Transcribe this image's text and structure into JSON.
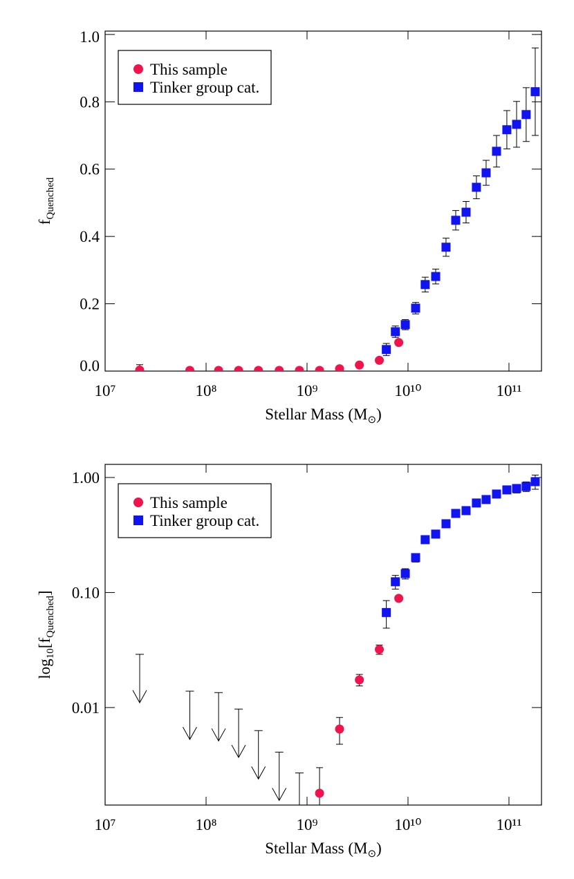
{
  "chart_data": [
    {
      "type": "scatter",
      "xlabel": [
        {
          "text": "Stellar Mass (M"
        },
        {
          "text": "⊙",
          "sub": true
        },
        {
          "text": ")"
        }
      ],
      "ylabel": [
        {
          "text": "f"
        },
        {
          "text": "Quenched",
          "sub": true
        }
      ],
      "xscale": "log",
      "yscale": "linear",
      "xlim": [
        10000000,
        210000000000
      ],
      "ylim": [
        0,
        1.01
      ],
      "xticks": [
        {
          "value": 10000000,
          "label": "10⁷"
        },
        {
          "value": 100000000,
          "label": "10⁸"
        },
        {
          "value": 1000000000,
          "label": "10⁹"
        },
        {
          "value": 10000000000,
          "label": "10¹⁰"
        },
        {
          "value": 100000000000,
          "label": "10¹¹"
        }
      ],
      "yticks": [
        {
          "value": 0,
          "label": "0.0"
        },
        0.2,
        0.4,
        0.6,
        0.8,
        {
          "value": 1,
          "label": "1.0"
        }
      ],
      "legend": "upper left",
      "series": [
        {
          "name": "This sample",
          "color": "#f0134c",
          "marker": "circle",
          "x": [
            22000000,
            69000000,
            133000000,
            210000000,
            330000000,
            530000000,
            840000000,
            1330000000,
            2100000000,
            3300000000,
            5200000000,
            8100000000
          ],
          "values": [
            0.003,
            0.002,
            0.002,
            0.002,
            0.002,
            0.002,
            0.002,
            0.002,
            0.007,
            0.018,
            0.032,
            0.085
          ],
          "errors": [
            0.016,
            null,
            null,
            null,
            null,
            null,
            null,
            null,
            null,
            null,
            null,
            null
          ]
        },
        {
          "name": "Tinker group cat.",
          "color": "#0f14f0",
          "marker": "square",
          "x": [
            6100000000,
            7500000000,
            9400000000,
            11900000000,
            14800000000,
            18800000000,
            23800000000,
            29700000000,
            37600000000,
            47600000000,
            59400000000,
            75300000000,
            95300000000,
            119000000000,
            148000000000,
            182000000000
          ],
          "values": [
            0.064,
            0.117,
            0.138,
            0.187,
            0.257,
            0.281,
            0.368,
            0.448,
            0.472,
            0.546,
            0.589,
            0.653,
            0.717,
            0.733,
            0.762,
            0.83
          ],
          "errors": [
            0.018,
            0.017,
            0.015,
            0.017,
            0.022,
            0.022,
            0.027,
            0.029,
            0.032,
            0.034,
            0.037,
            0.047,
            0.057,
            0.068,
            0.08,
            0.13
          ]
        }
      ]
    },
    {
      "type": "scatter",
      "xlabel": [
        {
          "text": "Stellar Mass (M"
        },
        {
          "text": "⊙",
          "sub": true
        },
        {
          "text": ")"
        }
      ],
      "ylabel": [
        {
          "text": "log"
        },
        {
          "text": "10",
          "sub": true
        },
        {
          "text": "[f"
        },
        {
          "text": "Quenched",
          "sub": true
        },
        {
          "text": "]"
        }
      ],
      "xscale": "log",
      "yscale": "log",
      "xlim": [
        10000000,
        210000000000
      ],
      "ylim": [
        0.00142,
        1.3
      ],
      "xticks": [
        {
          "value": 10000000,
          "label": "10⁷"
        },
        {
          "value": 100000000,
          "label": "10⁸"
        },
        {
          "value": 1000000000,
          "label": "10⁹"
        },
        {
          "value": 10000000000,
          "label": "10¹⁰"
        },
        {
          "value": 100000000000,
          "label": "10¹¹"
        }
      ],
      "yticks": [
        {
          "value": 0.01,
          "label": "0.01"
        },
        {
          "value": 0.1,
          "label": "0.10"
        },
        {
          "value": 1,
          "label": "1.00"
        }
      ],
      "legend": "upper left",
      "series": [
        {
          "color": "#000000",
          "marker": "upper-limit",
          "x": [
            22000000,
            69000000,
            133000000,
            210000000,
            330000000,
            530000000,
            840000000
          ],
          "values": [
            0.029,
            0.0139,
            0.0135,
            0.0097,
            0.0063,
            0.0041,
            0.0027
          ]
        },
        {
          "name": "This sample",
          "color": "#f0134c",
          "marker": "circle",
          "x": [
            1330000000,
            2100000000,
            3300000000,
            5200000000,
            8100000000
          ],
          "values": [
            0.0018,
            0.0065,
            0.0174,
            0.032,
            0.089
          ],
          "errors": [
            0.0012,
            0.0017,
            0.002,
            0.003,
            0.003
          ]
        },
        {
          "name": "Tinker group cat.",
          "color": "#0f14f0",
          "marker": "square",
          "x": [
            6100000000,
            7500000000,
            9400000000,
            11900000000,
            14800000000,
            18800000000,
            23800000000,
            29700000000,
            37600000000,
            47600000000,
            59400000000,
            75300000000,
            95300000000,
            119000000000,
            148000000000,
            182000000000
          ],
          "values": [
            0.067,
            0.124,
            0.146,
            0.201,
            0.288,
            0.322,
            0.396,
            0.487,
            0.515,
            0.6,
            0.643,
            0.718,
            0.78,
            0.802,
            0.835,
            0.92
          ],
          "errors": [
            0.018,
            0.017,
            0.015,
            0.017,
            0.022,
            0.022,
            0.027,
            0.029,
            0.032,
            0.034,
            0.037,
            0.047,
            0.057,
            0.068,
            0.08,
            0.13
          ]
        }
      ]
    }
  ]
}
